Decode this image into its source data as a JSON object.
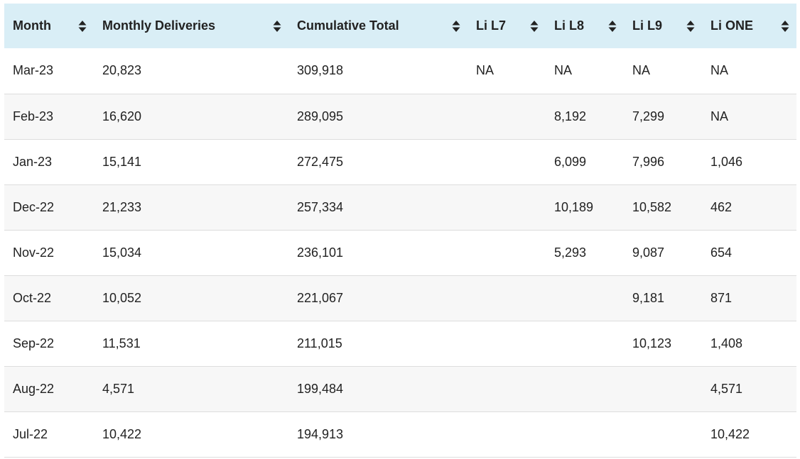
{
  "table": {
    "headers": [
      {
        "key": "month",
        "label": "Month",
        "sort_icon": "sort-icon"
      },
      {
        "key": "monthly",
        "label": "Monthly Deliveries",
        "sort_icon": "sort-icon"
      },
      {
        "key": "cumulative",
        "label": "Cumulative Total",
        "sort_icon": "sort-icon"
      },
      {
        "key": "l7",
        "label": "Li L7",
        "sort_icon": "sort-icon"
      },
      {
        "key": "l8",
        "label": "Li L8",
        "sort_icon": "sort-icon"
      },
      {
        "key": "l9",
        "label": "Li L9",
        "sort_icon": "sort-icon"
      },
      {
        "key": "one",
        "label": "Li ONE",
        "sort_icon": "sort-icon"
      }
    ],
    "rows": [
      [
        "Mar-23",
        "20,823",
        "309,918",
        "NA",
        "NA",
        "NA",
        "NA"
      ],
      [
        "Feb-23",
        "16,620",
        "289,095",
        "",
        "8,192",
        "7,299",
        "NA"
      ],
      [
        "Jan-23",
        "15,141",
        "272,475",
        "",
        "6,099",
        "7,996",
        "1,046"
      ],
      [
        "Dec-22",
        "21,233",
        "257,334",
        "",
        "10,189",
        "10,582",
        "462"
      ],
      [
        "Nov-22",
        "15,034",
        "236,101",
        "",
        "5,293",
        "9,087",
        "654"
      ],
      [
        "Oct-22",
        "10,052",
        "221,067",
        "",
        "",
        "9,181",
        "871"
      ],
      [
        "Sep-22",
        "11,531",
        "211,015",
        "",
        "",
        "10,123",
        "1,408"
      ],
      [
        "Aug-22",
        "4,571",
        "199,484",
        "",
        "",
        "",
        "4,571"
      ],
      [
        "Jul-22",
        "10,422",
        "194,913",
        "",
        "",
        "",
        "10,422"
      ]
    ]
  },
  "colors": {
    "header_bg": "#d9eef6",
    "row_alt_bg": "#f7f7f7",
    "border": "#dddddd",
    "text": "#222222"
  }
}
